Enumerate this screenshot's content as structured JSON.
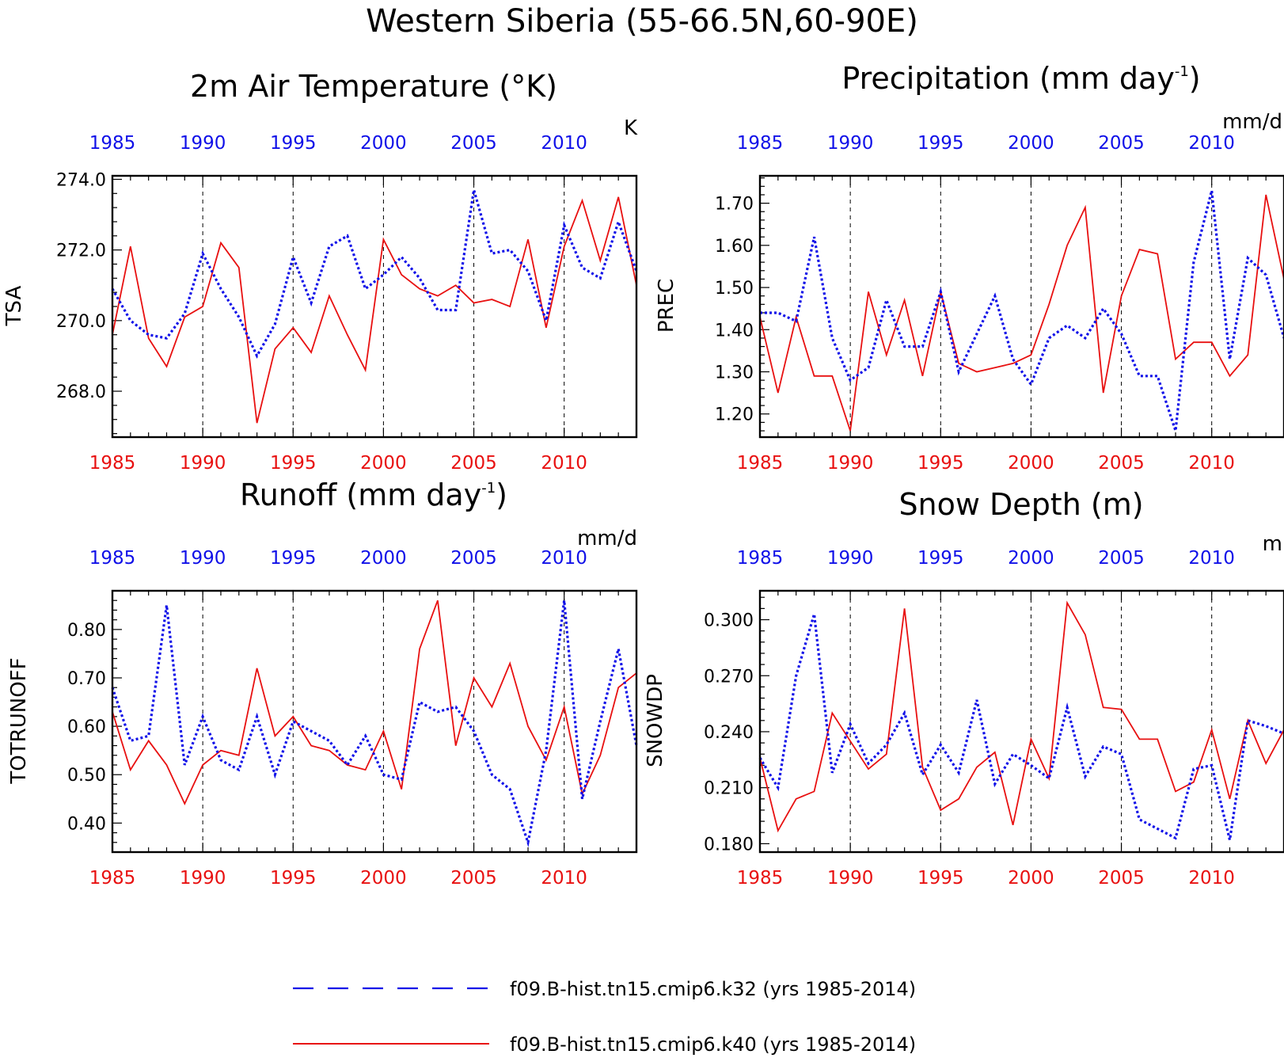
{
  "title": "Western Siberia (55-66.5N,60-90E)",
  "colors": {
    "series1": "#1010e8",
    "series2": "#e81010",
    "axis": "#000000"
  },
  "legend": [
    {
      "label": "f09.B-hist.tn15.cmip6.k32 (yrs 1985-2014)",
      "style": "dashed",
      "color": "#1010e8"
    },
    {
      "label": "f09.B-hist.tn15.cmip6.k40 (yrs 1985-2014)",
      "style": "solid",
      "color": "#e81010"
    }
  ],
  "panels": [
    {
      "title": "2m Air Temperature (°K)",
      "ylabel": "TSA",
      "units": "K"
    },
    {
      "title": "Precipitation (mm day",
      "title_sup": "-1",
      "title_end": ")",
      "ylabel": "PREC",
      "units": "mm/d"
    },
    {
      "title": "Runoff (mm day",
      "title_sup": "-1",
      "title_end": ")",
      "ylabel": "TOTRUNOFF",
      "units": "mm/d"
    },
    {
      "title": "Snow Depth (m)",
      "ylabel": "SNOWDP",
      "units": "m"
    }
  ],
  "chart_data": [
    {
      "type": "line",
      "title": "2m Air Temperature (°K)",
      "ylabel": "TSA",
      "units": "K",
      "x": [
        1985,
        1986,
        1987,
        1988,
        1989,
        1990,
        1991,
        1992,
        1993,
        1994,
        1995,
        1996,
        1997,
        1998,
        1999,
        2000,
        2001,
        2002,
        2003,
        2004,
        2005,
        2006,
        2007,
        2008,
        2009,
        2010,
        2011,
        2012,
        2013,
        2014
      ],
      "xlim": [
        1985,
        2014
      ],
      "xticks": [
        1985,
        1990,
        1995,
        2000,
        2005,
        2010
      ],
      "ylim": [
        266.7,
        274.1
      ],
      "yticks": [
        268.0,
        270.0,
        272.0,
        274.0
      ],
      "ytick_labels": [
        "268.0",
        "270.0",
        "272.0",
        "274.0"
      ],
      "series": [
        {
          "name": "f09.B-hist.tn15.cmip6.k32",
          "values": [
            270.9,
            270.0,
            269.6,
            269.5,
            270.2,
            271.9,
            270.9,
            270.1,
            269.0,
            269.9,
            271.8,
            270.5,
            272.1,
            272.4,
            270.9,
            271.3,
            271.8,
            271.2,
            270.3,
            270.3,
            273.7,
            271.9,
            272.0,
            271.4,
            270.0,
            272.7,
            271.5,
            271.2,
            272.8,
            271.4
          ]
        },
        {
          "name": "f09.B-hist.tn15.cmip6.k40",
          "values": [
            269.6,
            272.1,
            269.5,
            268.7,
            270.1,
            270.4,
            272.2,
            271.5,
            267.1,
            269.2,
            269.8,
            269.1,
            270.7,
            269.6,
            268.6,
            272.3,
            271.3,
            270.9,
            270.7,
            271.0,
            270.5,
            270.6,
            270.4,
            272.3,
            269.8,
            272.1,
            273.4,
            271.7,
            273.5,
            271.0
          ]
        }
      ]
    },
    {
      "type": "line",
      "title": "Precipitation (mm day-1)",
      "ylabel": "PREC",
      "units": "mm/d",
      "x": [
        1985,
        1986,
        1987,
        1988,
        1989,
        1990,
        1991,
        1992,
        1993,
        1994,
        1995,
        1996,
        1997,
        1998,
        1999,
        2000,
        2001,
        2002,
        2003,
        2004,
        2005,
        2006,
        2007,
        2008,
        2009,
        2010,
        2011,
        2012,
        2013,
        2014
      ],
      "xlim": [
        1985,
        2014
      ],
      "xticks": [
        1985,
        1990,
        1995,
        2000,
        2005,
        2010
      ],
      "ylim": [
        1.145,
        1.765
      ],
      "yticks": [
        1.2,
        1.3,
        1.4,
        1.5,
        1.6,
        1.7
      ],
      "ytick_labels": [
        "1.20",
        "1.30",
        "1.40",
        "1.50",
        "1.60",
        "1.70"
      ],
      "series": [
        {
          "name": "f09.B-hist.tn15.cmip6.k32",
          "values": [
            1.44,
            1.44,
            1.42,
            1.62,
            1.38,
            1.28,
            1.31,
            1.47,
            1.36,
            1.36,
            1.49,
            1.3,
            1.39,
            1.48,
            1.33,
            1.27,
            1.38,
            1.41,
            1.38,
            1.45,
            1.39,
            1.29,
            1.29,
            1.16,
            1.56,
            1.73,
            1.33,
            1.57,
            1.53,
            1.38
          ]
        },
        {
          "name": "f09.B-hist.tn15.cmip6.k40",
          "values": [
            1.43,
            1.25,
            1.43,
            1.29,
            1.29,
            1.16,
            1.49,
            1.34,
            1.47,
            1.29,
            1.49,
            1.32,
            1.3,
            1.31,
            1.32,
            1.34,
            1.46,
            1.6,
            1.69,
            1.25,
            1.48,
            1.59,
            1.58,
            1.33,
            1.37,
            1.37,
            1.29,
            1.34,
            1.72,
            1.52
          ]
        }
      ]
    },
    {
      "type": "line",
      "title": "Runoff (mm day-1)",
      "ylabel": "TOTRUNOFF",
      "units": "mm/d",
      "x": [
        1985,
        1986,
        1987,
        1988,
        1989,
        1990,
        1991,
        1992,
        1993,
        1994,
        1995,
        1996,
        1997,
        1998,
        1999,
        2000,
        2001,
        2002,
        2003,
        2004,
        2005,
        2006,
        2007,
        2008,
        2009,
        2010,
        2011,
        2012,
        2013,
        2014
      ],
      "xlim": [
        1985,
        2014
      ],
      "xticks": [
        1985,
        1990,
        1995,
        2000,
        2005,
        2010
      ],
      "ylim": [
        0.34,
        0.88
      ],
      "yticks": [
        0.4,
        0.5,
        0.6,
        0.7,
        0.8
      ],
      "ytick_labels": [
        "0.40",
        "0.50",
        "0.60",
        "0.70",
        "0.80"
      ],
      "series": [
        {
          "name": "f09.B-hist.tn15.cmip6.k32",
          "values": [
            0.68,
            0.57,
            0.58,
            0.85,
            0.52,
            0.62,
            0.53,
            0.51,
            0.62,
            0.5,
            0.61,
            0.59,
            0.57,
            0.52,
            0.58,
            0.5,
            0.49,
            0.65,
            0.63,
            0.64,
            0.59,
            0.5,
            0.47,
            0.36,
            0.55,
            0.86,
            0.45,
            0.61,
            0.76,
            0.56
          ]
        },
        {
          "name": "f09.B-hist.tn15.cmip6.k40",
          "values": [
            0.63,
            0.51,
            0.57,
            0.52,
            0.44,
            0.52,
            0.55,
            0.54,
            0.72,
            0.58,
            0.62,
            0.56,
            0.55,
            0.52,
            0.51,
            0.59,
            0.47,
            0.76,
            0.86,
            0.56,
            0.7,
            0.64,
            0.73,
            0.6,
            0.53,
            0.64,
            0.46,
            0.54,
            0.68,
            0.71
          ]
        }
      ]
    },
    {
      "type": "line",
      "title": "Snow Depth (m)",
      "ylabel": "SNOWDP",
      "units": "m",
      "x": [
        1985,
        1986,
        1987,
        1988,
        1989,
        1990,
        1991,
        1992,
        1993,
        1994,
        1995,
        1996,
        1997,
        1998,
        1999,
        2000,
        2001,
        2002,
        2003,
        2004,
        2005,
        2006,
        2007,
        2008,
        2009,
        2010,
        2011,
        2012,
        2013,
        2014
      ],
      "xlim": [
        1985,
        2014
      ],
      "xticks": [
        1985,
        1990,
        1995,
        2000,
        2005,
        2010
      ],
      "ylim": [
        0.1755,
        0.3155
      ],
      "yticks": [
        0.18,
        0.21,
        0.24,
        0.27,
        0.3
      ],
      "ytick_labels": [
        "0.180",
        "0.210",
        "0.240",
        "0.270",
        "0.300"
      ],
      "series": [
        {
          "name": "f09.B-hist.tn15.cmip6.k32",
          "values": [
            0.226,
            0.21,
            0.27,
            0.303,
            0.218,
            0.244,
            0.223,
            0.233,
            0.25,
            0.217,
            0.233,
            0.218,
            0.257,
            0.212,
            0.228,
            0.222,
            0.215,
            0.253,
            0.216,
            0.232,
            0.228,
            0.193,
            0.188,
            0.183,
            0.22,
            0.222,
            0.182,
            0.246,
            0.243,
            0.239
          ]
        },
        {
          "name": "f09.B-hist.tn15.cmip6.k40",
          "values": [
            0.226,
            0.187,
            0.204,
            0.208,
            0.25,
            0.235,
            0.22,
            0.228,
            0.306,
            0.221,
            0.198,
            0.204,
            0.221,
            0.229,
            0.19,
            0.236,
            0.215,
            0.309,
            0.292,
            0.253,
            0.252,
            0.236,
            0.236,
            0.208,
            0.213,
            0.241,
            0.204,
            0.246,
            0.223,
            0.241
          ]
        }
      ]
    }
  ]
}
